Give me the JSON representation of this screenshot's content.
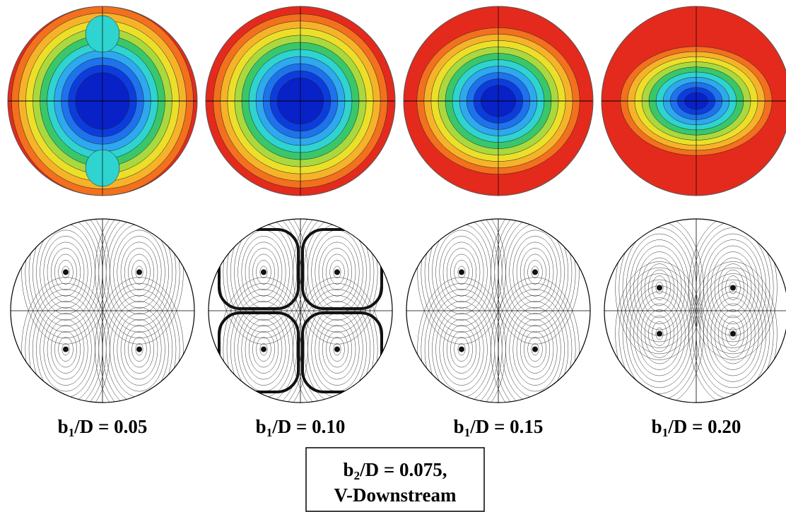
{
  "panels": [
    {
      "label": {
        "base": "b",
        "sub": "1",
        "rest": "/D = 0.05"
      }
    },
    {
      "label": {
        "base": "b",
        "sub": "1",
        "rest": "/D = 0.10"
      }
    },
    {
      "label": {
        "base": "b",
        "sub": "1",
        "rest": "/D = 0.15"
      }
    },
    {
      "label": {
        "base": "b",
        "sub": "1",
        "rest": "/D = 0.20"
      }
    }
  ],
  "caption": {
    "line1": {
      "base": "b",
      "sub": "2",
      "rest": "/D = 0.075,"
    },
    "line2": "V-Downstream"
  }
}
